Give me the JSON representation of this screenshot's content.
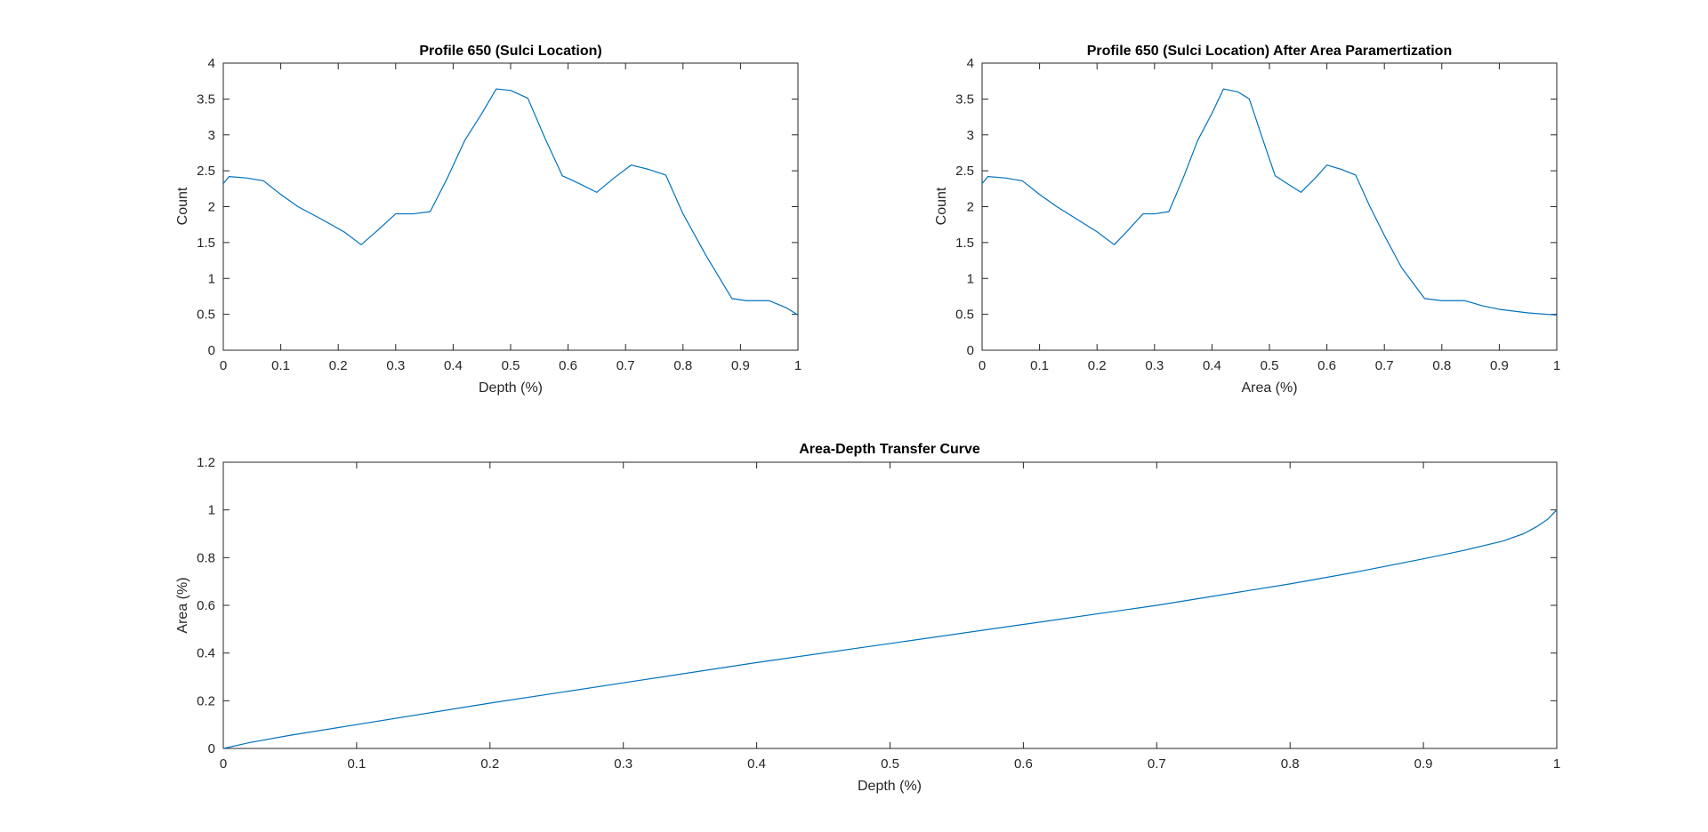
{
  "colors": {
    "line": "#0072BD",
    "axes": "#262626",
    "background": "#ffffff"
  },
  "chart_data": [
    {
      "type": "line",
      "title": "Profile 650 (Sulci Location)",
      "xlabel": "Depth (%)",
      "ylabel": "Count",
      "xlim": [
        0,
        1
      ],
      "ylim": [
        0,
        4
      ],
      "xticks": [
        0,
        0.1,
        0.2,
        0.3,
        0.4,
        0.5,
        0.6,
        0.7,
        0.8,
        0.9,
        1
      ],
      "xtick_labels": [
        "0",
        "0.1",
        "0.2",
        "0.3",
        "0.4",
        "0.5",
        "0.6",
        "0.7",
        "0.8",
        "0.9",
        "1"
      ],
      "yticks": [
        0,
        0.5,
        1,
        1.5,
        2,
        2.5,
        3,
        3.5,
        4
      ],
      "ytick_labels": [
        "0",
        "0.5",
        "1",
        "1.5",
        "2",
        "2.5",
        "3",
        "3.5",
        "4"
      ],
      "grid": false,
      "series": [
        {
          "x": [
            0,
            0.01,
            0.04,
            0.07,
            0.1,
            0.13,
            0.17,
            0.21,
            0.24,
            0.27,
            0.3,
            0.33,
            0.36,
            0.39,
            0.42,
            0.45,
            0.475,
            0.5,
            0.53,
            0.56,
            0.59,
            0.62,
            0.65,
            0.68,
            0.71,
            0.74,
            0.77,
            0.8,
            0.84,
            0.885,
            0.91,
            0.95,
            0.98,
            1
          ],
          "y": [
            2.32,
            2.42,
            2.4,
            2.36,
            2.17,
            2.0,
            1.83,
            1.65,
            1.47,
            1.68,
            1.9,
            1.9,
            1.93,
            2.4,
            2.92,
            3.3,
            3.64,
            3.62,
            3.51,
            2.95,
            2.43,
            2.32,
            2.2,
            2.4,
            2.58,
            2.52,
            2.44,
            1.9,
            1.32,
            0.72,
            0.69,
            0.69,
            0.59,
            0.49
          ]
        }
      ]
    },
    {
      "type": "line",
      "title": "Profile 650 (Sulci Location) After Area Paramertization",
      "xlabel": "Area (%)",
      "ylabel": "Count",
      "xlim": [
        0,
        1
      ],
      "ylim": [
        0,
        4
      ],
      "xticks": [
        0,
        0.1,
        0.2,
        0.3,
        0.4,
        0.5,
        0.6,
        0.7,
        0.8,
        0.9,
        1
      ],
      "xtick_labels": [
        "0",
        "0.1",
        "0.2",
        "0.3",
        "0.4",
        "0.5",
        "0.6",
        "0.7",
        "0.8",
        "0.9",
        "1"
      ],
      "yticks": [
        0,
        0.5,
        1,
        1.5,
        2,
        2.5,
        3,
        3.5,
        4
      ],
      "ytick_labels": [
        "0",
        "0.5",
        "1",
        "1.5",
        "2",
        "2.5",
        "3",
        "3.5",
        "4"
      ],
      "grid": false,
      "series": [
        {
          "x": [
            0,
            0.01,
            0.04,
            0.07,
            0.1,
            0.13,
            0.17,
            0.2,
            0.23,
            0.255,
            0.28,
            0.3,
            0.325,
            0.35,
            0.375,
            0.4,
            0.42,
            0.445,
            0.465,
            0.49,
            0.51,
            0.535,
            0.555,
            0.58,
            0.6,
            0.625,
            0.65,
            0.675,
            0.7,
            0.73,
            0.77,
            0.8,
            0.84,
            0.87,
            0.9,
            0.95,
            1
          ],
          "y": [
            2.32,
            2.42,
            2.4,
            2.36,
            2.17,
            2.0,
            1.8,
            1.65,
            1.47,
            1.68,
            1.9,
            1.9,
            1.93,
            2.4,
            2.92,
            3.3,
            3.64,
            3.6,
            3.5,
            2.9,
            2.43,
            2.3,
            2.2,
            2.4,
            2.58,
            2.52,
            2.44,
            2.0,
            1.6,
            1.15,
            0.72,
            0.69,
            0.69,
            0.62,
            0.57,
            0.52,
            0.49
          ]
        }
      ]
    },
    {
      "type": "line",
      "title": "Area-Depth Transfer Curve",
      "xlabel": "Depth (%)",
      "ylabel": "Area (%)",
      "xlim": [
        0,
        1
      ],
      "ylim": [
        0,
        1.2
      ],
      "xticks": [
        0,
        0.1,
        0.2,
        0.3,
        0.4,
        0.5,
        0.6,
        0.7,
        0.8,
        0.9,
        1
      ],
      "xtick_labels": [
        "0",
        "0.1",
        "0.2",
        "0.3",
        "0.4",
        "0.5",
        "0.6",
        "0.7",
        "0.8",
        "0.9",
        "1"
      ],
      "yticks": [
        0,
        0.2,
        0.4,
        0.6,
        0.8,
        1,
        1.2
      ],
      "ytick_labels": [
        "0",
        "0.2",
        "0.4",
        "0.6",
        "0.8",
        "1",
        "1.2"
      ],
      "grid": false,
      "series": [
        {
          "x": [
            0,
            0.02,
            0.05,
            0.1,
            0.2,
            0.3,
            0.4,
            0.5,
            0.6,
            0.7,
            0.8,
            0.85,
            0.9,
            0.93,
            0.96,
            0.975,
            0.985,
            0.993,
            1
          ],
          "y": [
            0,
            0.025,
            0.055,
            0.1,
            0.19,
            0.275,
            0.36,
            0.44,
            0.52,
            0.6,
            0.69,
            0.74,
            0.795,
            0.83,
            0.87,
            0.9,
            0.93,
            0.96,
            1.0
          ]
        }
      ]
    }
  ]
}
